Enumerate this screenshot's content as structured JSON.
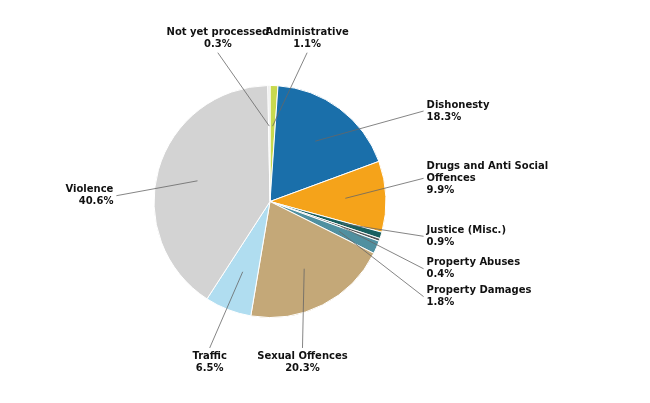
{
  "chart_data": {
    "type": "pie",
    "categories": [
      "Administrative",
      "Dishonesty",
      "Drugs and Anti Social\nOffences",
      "Justice (Misc.)",
      "Property Abuses",
      "Property Damages",
      "Sexual Offences",
      "Traffic",
      "Violence",
      "Not yet processed"
    ],
    "values": [
      1.1,
      18.3,
      9.9,
      0.9,
      0.4,
      1.8,
      20.3,
      6.5,
      40.6,
      0.3
    ],
    "value_labels": [
      "1.1%",
      "18.3%",
      "9.9%",
      "0.9%",
      "0.4%",
      "1.8%",
      "20.3%",
      "6.5%",
      "40.6%",
      "0.3%"
    ],
    "colors": [
      "#c8d94e",
      "#1a6faa",
      "#f5a31a",
      "#1a6060",
      "#555555",
      "#5090a0",
      "#c4a878",
      "#b0ddf0",
      "#d3d3d3",
      "#e8e8e8"
    ],
    "data_labels": true
  }
}
